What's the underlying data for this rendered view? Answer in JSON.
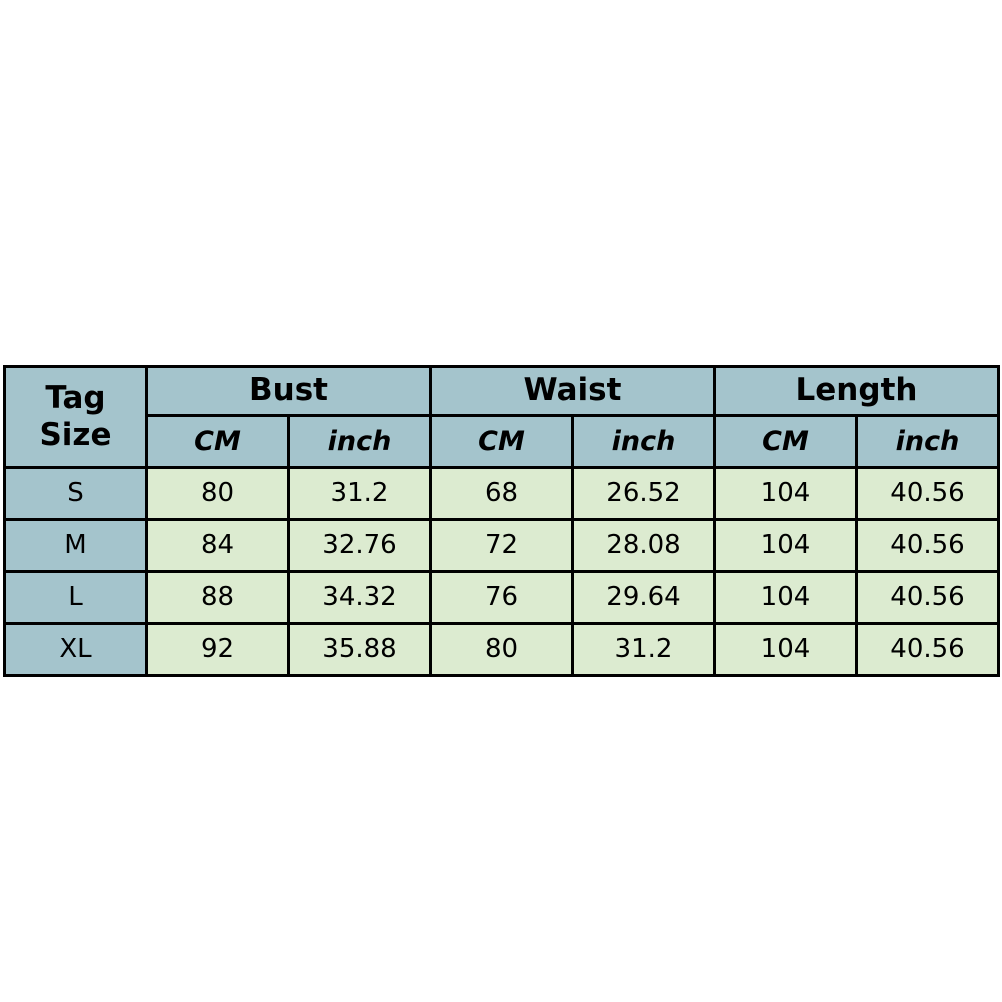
{
  "header": {
    "tag_size": [
      "Tag",
      "Size"
    ],
    "groups": [
      "Bust",
      "Waist",
      "Length"
    ],
    "units": [
      "CM",
      "inch",
      "CM",
      "inch",
      "CM",
      "inch"
    ]
  },
  "rows": [
    {
      "size": "S",
      "values": [
        "80",
        "31.2",
        "68",
        "26.52",
        "104",
        "40.56"
      ]
    },
    {
      "size": "M",
      "values": [
        "84",
        "32.76",
        "72",
        "28.08",
        "104",
        "40.56"
      ]
    },
    {
      "size": "L",
      "values": [
        "88",
        "34.32",
        "76",
        "29.64",
        "104",
        "40.56"
      ]
    },
    {
      "size": "XL",
      "values": [
        "92",
        "35.88",
        "80",
        "31.2",
        "104",
        "40.56"
      ]
    }
  ],
  "colors": {
    "header_bg": "#a4c4cc",
    "data_bg": "#dcebd0",
    "border": "#000000"
  }
}
